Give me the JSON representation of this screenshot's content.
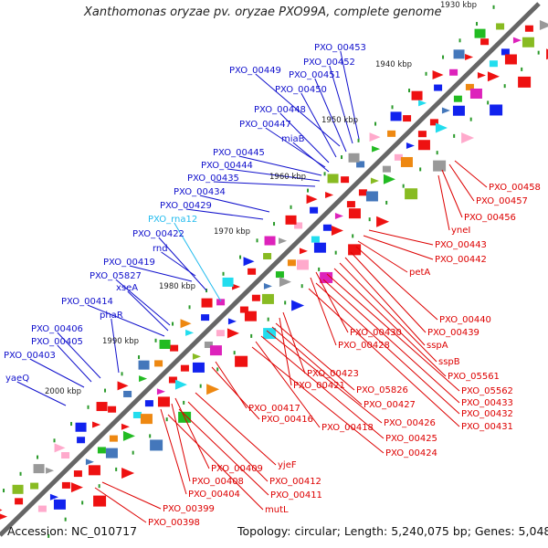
{
  "title": "Xanthomonas oryzae pv. oryzae PXO99A, complete genome",
  "accession": "Accession: NC_010717",
  "summary": "Topology: circular; Length: 5,240,075 bp; Genes: 5,048",
  "colors": {
    "blue_label": "#1010cc",
    "red_label": "#dd0000",
    "cyan_label": "#22bbee"
  },
  "scale_labels": [
    "1930 kbp",
    "1940 kbp",
    "1950 kbp",
    "1960 kbp",
    "1970 kbp",
    "1980 kbp",
    "1990 kbp",
    "2000 kbp"
  ],
  "left_labels": [
    "PXO_00453",
    "PXO_00452",
    "PXO_00449",
    "PXO_00451",
    "PXO_00450",
    "PXO_00448",
    "PXO_00447",
    "miaB",
    "PXO_00445",
    "PXO_00444",
    "PXO_00435",
    "PXO_00434",
    "PXO_00429",
    "PXO_rna12",
    "PXO_00422",
    "rnd",
    "PXO_00419",
    "PXO_05827",
    "xseA",
    "PXO_00414",
    "phaR",
    "PXO_00406",
    "PXO_00405",
    "PXO_00403",
    "yaeQ"
  ],
  "right_labels": [
    "PXO_00458",
    "PXO_00457",
    "PXO_00456",
    "yneI",
    "PXO_00443",
    "PXO_00442",
    "petA",
    "PXO_00440",
    "PXO_00439",
    "PXO_00430",
    "PXO_00428",
    "sspA",
    "sspB",
    "PXO_05561",
    "PXO_00423",
    "PXO_00421",
    "PXO_05826",
    "PXO_05562",
    "PXO_00433",
    "PXO_00427",
    "PXO_00432",
    "PXO_00426",
    "PXO_00431",
    "PXO_00417",
    "PXO_00425",
    "PXO_00416",
    "PXO_00418",
    "PXO_00424",
    "yjeF",
    "PXO_00409",
    "PXO_00412",
    "PXO_00408",
    "PXO_00411",
    "PXO_00404",
    "mutL",
    "PXO_00399",
    "PXO_00398"
  ]
}
